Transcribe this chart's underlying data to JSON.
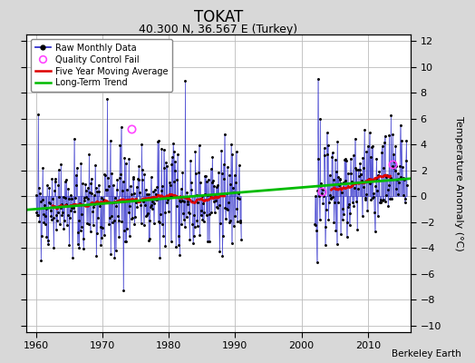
{
  "title": "TOKAT",
  "subtitle": "40.300 N, 36.567 E (Turkey)",
  "ylabel": "Temperature Anomaly (°C)",
  "credit": "Berkeley Earth",
  "xlim": [
    1958.5,
    2016.5
  ],
  "ylim": [
    -10.5,
    12.5
  ],
  "yticks": [
    -10,
    -8,
    -6,
    -4,
    -2,
    0,
    2,
    4,
    6,
    8,
    10,
    12
  ],
  "xticks": [
    1960,
    1970,
    1980,
    1990,
    2000,
    2010
  ],
  "data_gap_start": 1991,
  "data_gap_end": 2002,
  "start_year": 1960,
  "end_year": 2015,
  "raw_color": "#3333cc",
  "raw_alpha": 0.55,
  "moving_avg_color": "#dd0000",
  "trend_color": "#00bb00",
  "qc_color": "#ff44ff",
  "background_color": "#d8d8d8",
  "plot_bg_color": "#ffffff",
  "grid_color": "#bbbbbb",
  "title_fontsize": 12,
  "subtitle_fontsize": 9,
  "label_fontsize": 8,
  "tick_fontsize": 8,
  "legend_fontsize": 7,
  "credit_fontsize": 7.5,
  "seed": 42,
  "noise_scale": 2.1,
  "qc_points": [
    [
      1974.42,
      5.2
    ],
    [
      2003.08,
      0.4
    ],
    [
      2013.75,
      2.5
    ]
  ]
}
